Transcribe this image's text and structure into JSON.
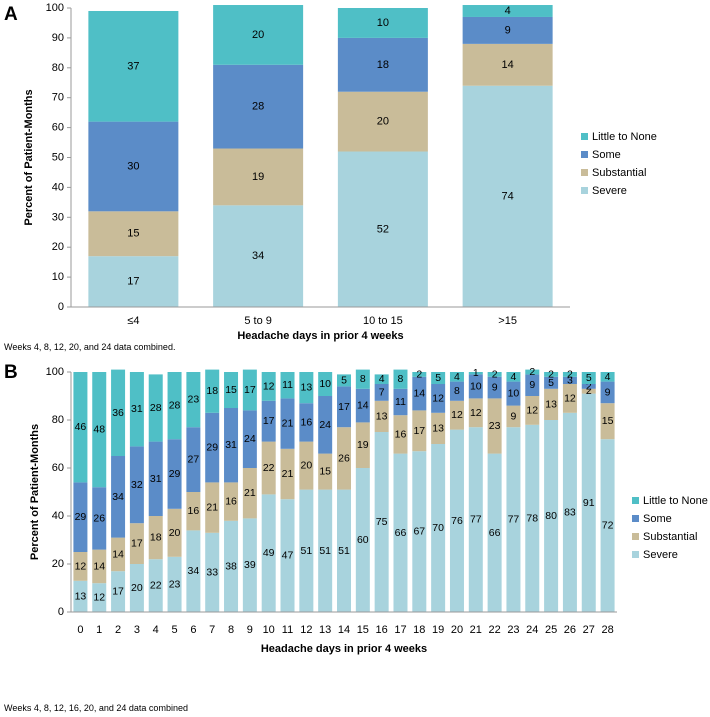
{
  "chart_data": [
    {
      "type": "bar",
      "stacked": true,
      "panel": "A",
      "title": "",
      "ylabel": "Percent of Patient-Months",
      "xlabel": "Headache days in prior 4 weeks",
      "ylim": [
        0,
        100
      ],
      "yticks": [
        "0",
        "10",
        "20",
        "30",
        "40",
        "50",
        "60",
        "70",
        "80",
        "90",
        "100"
      ],
      "grid": false,
      "legend_position": "right",
      "note": "Weeks 4, 8, 12, 20, and 24 data combined.",
      "categories": [
        "≤4",
        "5 to 9",
        "10 to 15",
        ">15"
      ],
      "series": [
        {
          "name": "Severe",
          "color": "#a8d3dd",
          "values": [
            17,
            34,
            52,
            74
          ]
        },
        {
          "name": "Substantial",
          "color": "#c9bc99",
          "values": [
            15,
            19,
            20,
            14
          ]
        },
        {
          "name": "Some",
          "color": "#5b8cc8",
          "values": [
            30,
            28,
            18,
            9
          ]
        },
        {
          "name": "Little to None",
          "color": "#4fbfc6",
          "values": [
            37,
            20,
            10,
            4
          ]
        }
      ],
      "legend_order": [
        "Little to None",
        "Some",
        "Substantial",
        "Severe"
      ]
    },
    {
      "type": "bar",
      "stacked": true,
      "panel": "B",
      "title": "",
      "ylabel": "Percent of Patient-Months",
      "xlabel": "Headache days in prior 4 weeks",
      "ylim": [
        0,
        100
      ],
      "yticks": [
        "0",
        "20",
        "40",
        "60",
        "80",
        "100"
      ],
      "grid": false,
      "legend_position": "right",
      "note": "Weeks 4, 8, 12, 16, 20, and 24 data combined",
      "categories": [
        "0",
        "1",
        "2",
        "3",
        "4",
        "5",
        "6",
        "7",
        "8",
        "9",
        "10",
        "11",
        "12",
        "13",
        "14",
        "15",
        "16",
        "17",
        "18",
        "19",
        "20",
        "21",
        "22",
        "23",
        "24",
        "25",
        "26",
        "27",
        "28"
      ],
      "series": [
        {
          "name": "Severe",
          "color": "#a8d3dd",
          "values": [
            13,
            12,
            17,
            20,
            22,
            23,
            34,
            33,
            38,
            39,
            49,
            47,
            51,
            51,
            51,
            60,
            75,
            66,
            67,
            70,
            76,
            77,
            66,
            77,
            78,
            80,
            83,
            91,
            72
          ]
        },
        {
          "name": "Substantial",
          "color": "#c9bc99",
          "values": [
            12,
            14,
            14,
            17,
            18,
            20,
            16,
            21,
            16,
            21,
            22,
            21,
            20,
            15,
            26,
            19,
            13,
            16,
            17,
            13,
            12,
            12,
            23,
            9,
            12,
            13,
            12,
            2,
            15
          ]
        },
        {
          "name": "Some",
          "color": "#5b8cc8",
          "values": [
            29,
            26,
            34,
            32,
            31,
            29,
            27,
            29,
            31,
            24,
            17,
            21,
            16,
            24,
            17,
            14,
            7,
            11,
            14,
            12,
            8,
            10,
            9,
            10,
            9,
            5,
            3,
            2,
            9
          ]
        },
        {
          "name": "Little to None",
          "color": "#4fbfc6",
          "values": [
            46,
            48,
            36,
            31,
            28,
            28,
            23,
            18,
            15,
            17,
            12,
            11,
            13,
            10,
            5,
            8,
            4,
            8,
            2,
            5,
            4,
            1,
            2,
            4,
            2,
            2,
            2,
            5,
            4
          ]
        }
      ],
      "legend_order": [
        "Little to None",
        "Some",
        "Substantial",
        "Severe"
      ]
    }
  ]
}
